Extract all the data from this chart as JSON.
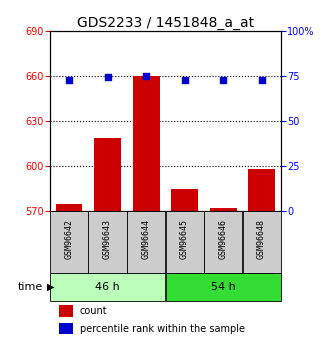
{
  "title": "GDS2233 / 1451848_a_at",
  "samples": [
    "GSM96642",
    "GSM96643",
    "GSM96644",
    "GSM96645",
    "GSM96646",
    "GSM96648"
  ],
  "bar_values": [
    575,
    619,
    660,
    585,
    572,
    598
  ],
  "percentile_values": [
    73,
    74.5,
    75,
    73,
    73,
    73
  ],
  "ylim_left": [
    570,
    690
  ],
  "ylim_right": [
    0,
    100
  ],
  "yticks_left": [
    570,
    600,
    630,
    660,
    690
  ],
  "yticks_right": [
    0,
    25,
    50,
    75,
    100
  ],
  "bar_color": "#cc0000",
  "dot_color": "#0000cc",
  "bar_bottom": 570,
  "groups": [
    {
      "label": "46 h",
      "indices": [
        0,
        1,
        2
      ]
    },
    {
      "label": "54 h",
      "indices": [
        3,
        4,
        5
      ]
    }
  ],
  "group_light_color": "#bbffbb",
  "group_dark_color": "#33dd33",
  "legend_count_label": "count",
  "legend_pct_label": "percentile rank within the sample",
  "bg_color": "#ffffff",
  "title_fontsize": 10,
  "tick_fontsize": 7,
  "sample_fontsize": 6,
  "group_fontsize": 8,
  "legend_fontsize": 7
}
